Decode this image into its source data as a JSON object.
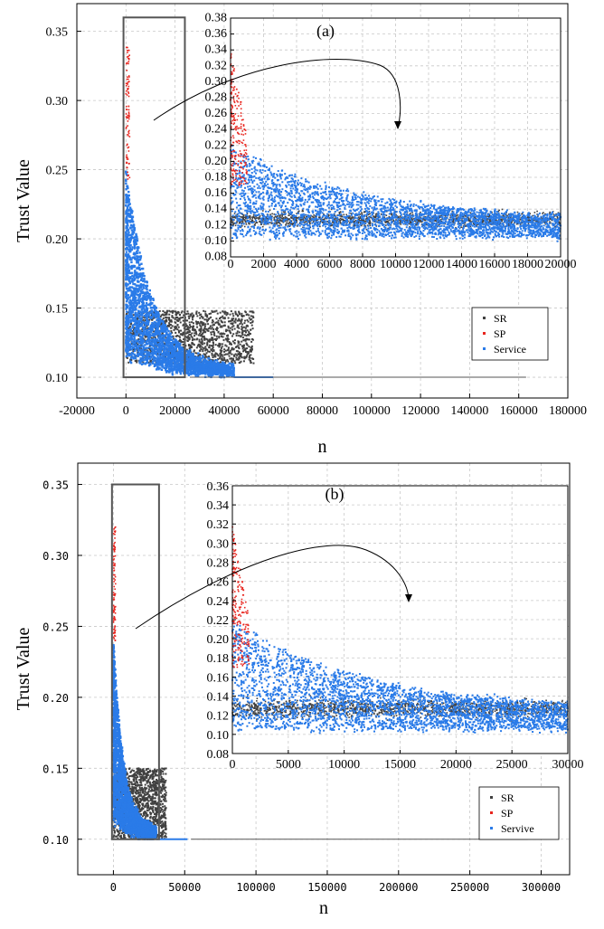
{
  "colors": {
    "SR": "#404040",
    "SP": "#e8251e",
    "Service": "#2a7be8"
  },
  "chart_data": [
    {
      "id": "a",
      "type": "scatter",
      "title": "(a)",
      "xlabel": "n",
      "ylabel": "Trust Value",
      "xlim": [
        -20000,
        180000
      ],
      "ylim": [
        0.085,
        0.37
      ],
      "xticks": [
        -20000,
        0,
        20000,
        40000,
        60000,
        80000,
        100000,
        120000,
        140000,
        160000,
        180000
      ],
      "xtick_labels": [
        "-20000",
        "0",
        "20000",
        "40000",
        "60000",
        "80000",
        "100000",
        "120000",
        "140000",
        "160000",
        "180000"
      ],
      "yticks": [
        0.1,
        0.15,
        0.2,
        0.25,
        0.3,
        0.35
      ],
      "ytick_labels": [
        "0.10",
        "0.15",
        "0.20",
        "0.25",
        "0.30",
        "0.35"
      ],
      "grid": true,
      "legend_position": "bottom-right",
      "series": [
        {
          "name": "SR",
          "x_range": [
            0,
            52000
          ],
          "y_band": [
            0.11,
            0.148
          ]
        },
        {
          "name": "SP",
          "x_range": [
            0,
            1500
          ],
          "y_range": [
            0.24,
            0.34
          ]
        },
        {
          "name": "Service",
          "x_range": [
            0,
            44000
          ],
          "y_start": 0.25,
          "y_end": 0.105,
          "tail_x": [
            44000,
            60000
          ],
          "tail_y": 0.1
        }
      ],
      "zoom_box": {
        "x": [
          -1000,
          24000
        ],
        "y": [
          0.1,
          0.36
        ]
      },
      "inset": {
        "xlim": [
          0,
          20000
        ],
        "ylim": [
          0.08,
          0.38
        ],
        "xticks": [
          0,
          2000,
          4000,
          6000,
          8000,
          10000,
          12000,
          14000,
          16000,
          18000,
          20000
        ],
        "xtick_labels": [
          "0",
          "2000",
          "4000",
          "6000",
          "8000",
          "10000",
          "12000",
          "14000",
          "16000",
          "18000",
          "20000"
        ],
        "yticks": [
          0.08,
          0.1,
          0.12,
          0.14,
          0.16,
          0.18,
          0.2,
          0.22,
          0.24,
          0.26,
          0.28,
          0.3,
          0.32,
          0.34,
          0.36,
          0.38
        ],
        "ytick_labels": [
          "0.08",
          "0.10",
          "0.12",
          "0.14",
          "0.16",
          "0.18",
          "0.20",
          "0.22",
          "0.24",
          "0.26",
          "0.28",
          "0.30",
          "0.32",
          "0.34",
          "0.36",
          "0.38"
        ]
      }
    },
    {
      "id": "b",
      "type": "scatter",
      "title": "(b)",
      "xlabel": "n",
      "ylabel": "Trust Value",
      "xlim": [
        -25000,
        320000
      ],
      "ylim": [
        0.075,
        0.365
      ],
      "xticks": [
        0,
        50000,
        100000,
        150000,
        200000,
        250000,
        300000
      ],
      "xtick_labels": [
        "0",
        "50000",
        "100000",
        "150000",
        "200000",
        "250000",
        "300000"
      ],
      "yticks": [
        0.1,
        0.15,
        0.2,
        0.25,
        0.3,
        0.35
      ],
      "ytick_labels": [
        "0.10",
        "0.15",
        "0.20",
        "0.25",
        "0.30",
        "0.35"
      ],
      "grid": true,
      "legend_position": "bottom-right",
      "series": [
        {
          "name": "SR",
          "x_range": [
            0,
            37000
          ],
          "y_band": [
            0.1,
            0.15
          ]
        },
        {
          "name": "SP",
          "x_range": [
            0,
            1500
          ],
          "y_range": [
            0.24,
            0.32
          ]
        },
        {
          "name": "Servive",
          "x_range": [
            0,
            30000
          ],
          "y_start": 0.24,
          "y_end": 0.105,
          "tail_x": [
            30000,
            52000
          ],
          "tail_y": 0.1
        }
      ],
      "zoom_box": {
        "x": [
          -1000,
          32000
        ],
        "y": [
          0.1,
          0.35
        ]
      },
      "inset": {
        "xlim": [
          0,
          30000
        ],
        "ylim": [
          0.08,
          0.36
        ],
        "xticks": [
          0,
          5000,
          10000,
          15000,
          20000,
          25000,
          30000
        ],
        "xtick_labels": [
          "0",
          "5000",
          "10000",
          "15000",
          "20000",
          "25000",
          "30000"
        ],
        "yticks": [
          0.08,
          0.1,
          0.12,
          0.14,
          0.16,
          0.18,
          0.2,
          0.22,
          0.24,
          0.26,
          0.28,
          0.3,
          0.32,
          0.34,
          0.36
        ],
        "ytick_labels": [
          "0.08",
          "0.10",
          "0.12",
          "0.14",
          "0.16",
          "0.18",
          "0.20",
          "0.22",
          "0.24",
          "0.26",
          "0.28",
          "0.30",
          "0.32",
          "0.34",
          "0.36"
        ]
      }
    }
  ]
}
